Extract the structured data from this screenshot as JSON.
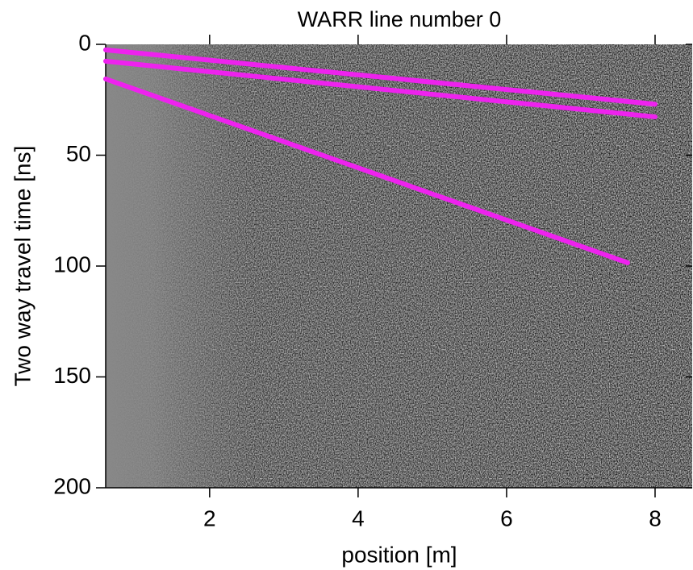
{
  "chart_data": {
    "type": "line",
    "title": "WARR line number 0",
    "x_label": "position [m]",
    "y_label": "Two way travel time [ns]",
    "xlim": [
      0.6,
      8.5
    ],
    "ylim": [
      0,
      200
    ],
    "y_inverted": true,
    "xticks": [
      2,
      4,
      6,
      8
    ],
    "yticks": [
      0,
      50,
      100,
      150,
      200
    ],
    "series": [
      {
        "color": "#ee22ee",
        "x": [
          0.6,
          8
        ],
        "values": [
          2.5,
          27
        ]
      },
      {
        "color": "#ee22ee",
        "x": [
          0.6,
          8
        ],
        "values": [
          7.6,
          32.7
        ]
      },
      {
        "color": "#ee22ee",
        "x": [
          0.6,
          7.63
        ],
        "values": [
          15.6,
          98.5
        ]
      }
    ]
  }
}
